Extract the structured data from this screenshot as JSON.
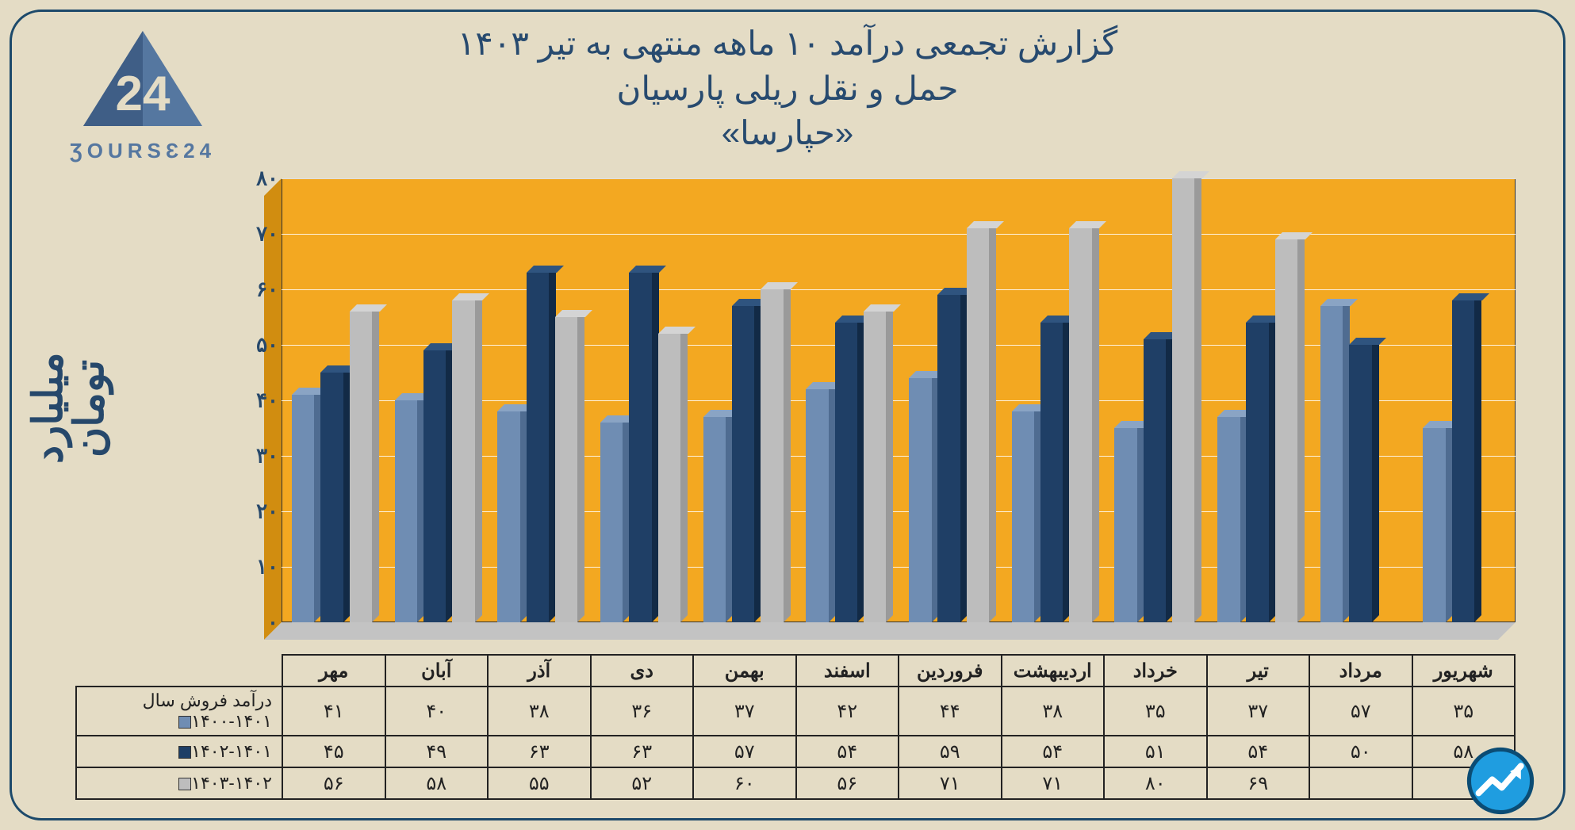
{
  "logo": {
    "brand_text": "ƷOURSƐ24",
    "triangle_color": "#5577a0",
    "text_color": "#5577a0"
  },
  "title": {
    "line1": "گزارش تجمعی درآمد ۱۰ ماهه منتهی به تیر ۱۴۰۳",
    "line2": "حمل و نقل ریلی پارسیان",
    "line3": "«حپارسا»",
    "color": "#274a6f",
    "fontsize": 42
  },
  "chart": {
    "type": "bar",
    "background_color": "#f3a821",
    "grid_color": "#ffffff",
    "bar_depth": 9,
    "ylim": [
      0,
      80
    ],
    "ytick_step": 10,
    "yticks": [
      "۰",
      "۱۰",
      "۲۰",
      "۳۰",
      "۴۰",
      "۵۰",
      "۶۰",
      "۷۰",
      "۸۰"
    ],
    "yaxis_title": "میلیارد تومان",
    "yaxis_title_fontsize": 52,
    "categories": [
      "مهر",
      "آبان",
      "آذر",
      "دی",
      "بهمن",
      "اسفند",
      "فروردین",
      "اردیبهشت",
      "خرداد",
      "تیر",
      "مرداد",
      "شهریور"
    ],
    "series": [
      {
        "name": "درآمد فروش سال ۱۴۰۱-۱۴۰۰",
        "color_front": "#6f8db3",
        "color_side": "#4f6c91",
        "color_roof": "#8aa4c4",
        "values": [
          41,
          40,
          38,
          36,
          37,
          42,
          44,
          38,
          35,
          37,
          57,
          35
        ],
        "labels": [
          "۴۱",
          "۴۰",
          "۳۸",
          "۳۶",
          "۳۷",
          "۴۲",
          "۴۴",
          "۳۸",
          "۳۵",
          "۳۷",
          "۵۷",
          "۳۵"
        ]
      },
      {
        "name": "۱۴۰۲-۱۴۰۱",
        "color_front": "#1f3f66",
        "color_side": "#122a46",
        "color_roof": "#2f547f",
        "values": [
          45,
          49,
          63,
          63,
          57,
          54,
          59,
          54,
          51,
          54,
          50,
          58
        ],
        "labels": [
          "۴۵",
          "۴۹",
          "۶۳",
          "۶۳",
          "۵۷",
          "۵۴",
          "۵۹",
          "۵۴",
          "۵۱",
          "۵۴",
          "۵۰",
          "۵۸"
        ]
      },
      {
        "name": "۱۴۰۳-۱۴۰۲",
        "color_front": "#bdbdbd",
        "color_side": "#9a9a9a",
        "color_roof": "#d4d4d4",
        "values": [
          56,
          58,
          55,
          52,
          60,
          56,
          71,
          71,
          80,
          69,
          null,
          null
        ],
        "labels": [
          "۵۶",
          "۵۸",
          "۵۵",
          "۵۲",
          "۶۰",
          "۵۶",
          "۷۱",
          "۷۱",
          "۸۰",
          "۶۹",
          "",
          ""
        ]
      }
    ]
  },
  "frame": {
    "border_color": "#1d4a6b",
    "background_color": "#e4dcc5",
    "border_radius": 40
  },
  "badge": {
    "bg": "#1f9de0",
    "border": "#0b4c74",
    "arrow": "#ffffff"
  }
}
